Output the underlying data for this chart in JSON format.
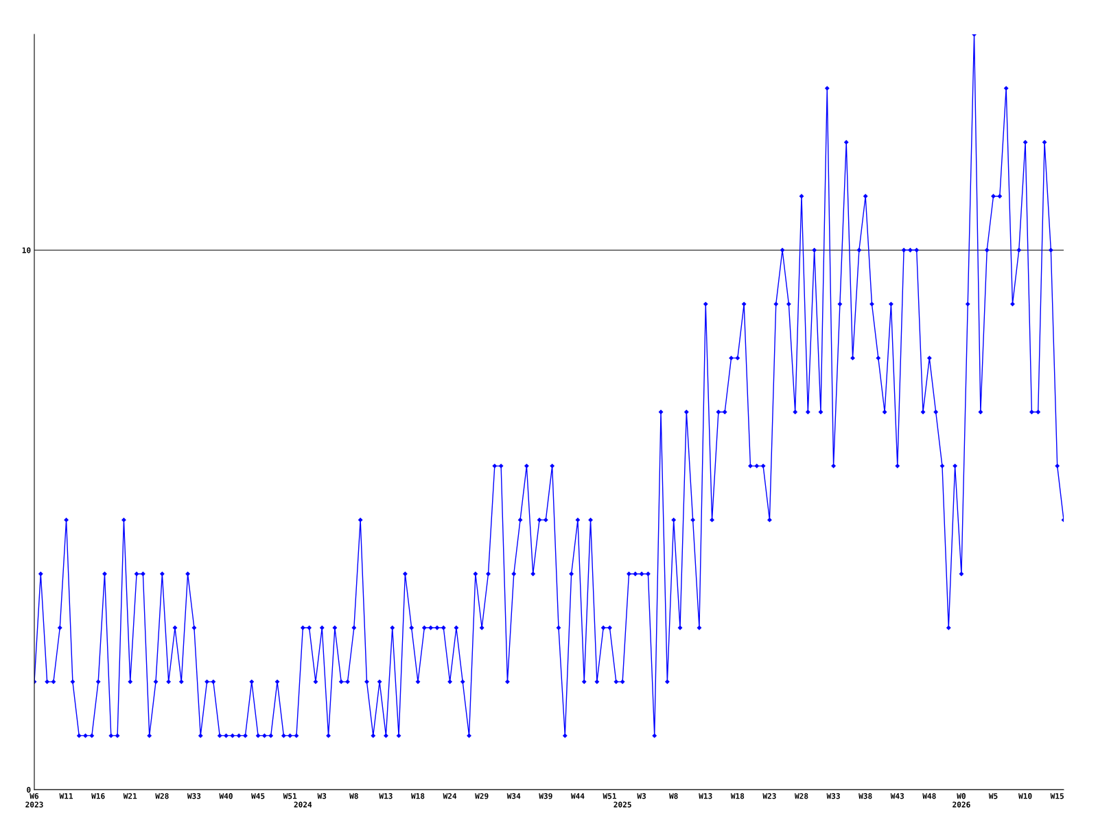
{
  "chart_data": {
    "type": "line",
    "categories": [
      "W6\n2023",
      null,
      null,
      null,
      null,
      "W11",
      null,
      null,
      null,
      null,
      "W16",
      null,
      null,
      null,
      null,
      "W21",
      null,
      null,
      null,
      null,
      "W28",
      null,
      null,
      null,
      null,
      "W33",
      null,
      null,
      null,
      null,
      "W40",
      null,
      null,
      null,
      null,
      "W45",
      null,
      null,
      null,
      null,
      "W51",
      null,
      "\n2024",
      null,
      null,
      "W3",
      null,
      null,
      null,
      null,
      "W8",
      null,
      null,
      null,
      null,
      "W13",
      null,
      null,
      null,
      null,
      "W18",
      null,
      null,
      null,
      null,
      "W24",
      null,
      null,
      null,
      null,
      "W29",
      null,
      null,
      null,
      null,
      "W34",
      null,
      null,
      null,
      null,
      "W39",
      null,
      null,
      null,
      null,
      "W44",
      null,
      null,
      null,
      null,
      "W51",
      null,
      "\n2025",
      null,
      null,
      "W3",
      null,
      null,
      null,
      null,
      "W8",
      null,
      null,
      null,
      null,
      "W13",
      null,
      null,
      null,
      null,
      "W18",
      null,
      null,
      null,
      null,
      "W23",
      null,
      null,
      null,
      null,
      "W28",
      null,
      null,
      null,
      null,
      "W33",
      null,
      null,
      null,
      null,
      "W38",
      null,
      null,
      null,
      null,
      "W43",
      null,
      null,
      null,
      null,
      "W48",
      null,
      null,
      null,
      null,
      "W0\n2026",
      null,
      null,
      null,
      null,
      "W5",
      null,
      null,
      null,
      null,
      "W10",
      null,
      null,
      null,
      null,
      "W15",
      null
    ],
    "series": [
      {
        "color": "#0000ff",
        "values": [
          2,
          4,
          2,
          2,
          3,
          5,
          2,
          1,
          1,
          1,
          2,
          4,
          1,
          1,
          5,
          2,
          4,
          4,
          1,
          2,
          4,
          2,
          3,
          2,
          4,
          3,
          1,
          2,
          2,
          1,
          1,
          1,
          1,
          1,
          2,
          1,
          1,
          1,
          2,
          1,
          1,
          1,
          3,
          3,
          2,
          3,
          1,
          3,
          2,
          2,
          3,
          5,
          2,
          1,
          2,
          1,
          3,
          1,
          4,
          3,
          2,
          3,
          3,
          3,
          3,
          2,
          3,
          2,
          1,
          4,
          3,
          4,
          6,
          6,
          2,
          4,
          5,
          6,
          4,
          5,
          5,
          6,
          3,
          1,
          4,
          5,
          2,
          5,
          2,
          3,
          3,
          2,
          2,
          4,
          4,
          4,
          4,
          1,
          7,
          2,
          5,
          3,
          7,
          5,
          3,
          9,
          5,
          7,
          7,
          8,
          8,
          9,
          6,
          6,
          6,
          5,
          9,
          10,
          9,
          7,
          11,
          7,
          10,
          7,
          13,
          6,
          9,
          12,
          8,
          10,
          11,
          9,
          8,
          7,
          9,
          6,
          10,
          10,
          10,
          7,
          8,
          7,
          6,
          3,
          6,
          4,
          9,
          14,
          7,
          10,
          11,
          11,
          13,
          9,
          10,
          12,
          7,
          7,
          12,
          10,
          6,
          5
        ]
      }
    ],
    "ylim": [
      0,
      14
    ],
    "yticks": [
      0,
      10
    ],
    "grid": "y",
    "marker": "diamond",
    "line_style": "solid"
  }
}
